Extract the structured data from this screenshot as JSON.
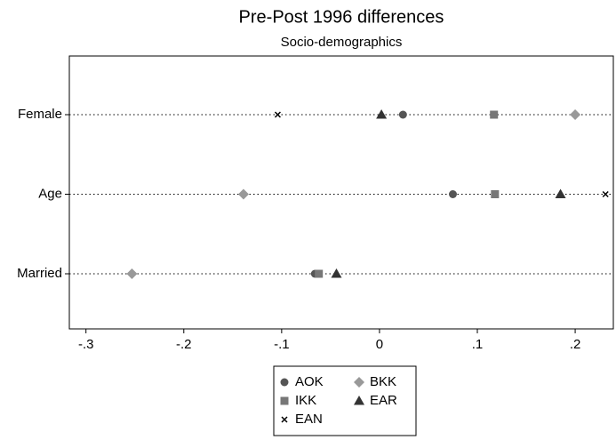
{
  "chart_data": {
    "type": "dot",
    "title": "Pre-Post 1996 differences",
    "subtitle": "Socio-demographics",
    "categories": [
      "Female",
      "Age",
      "Married"
    ],
    "series": [
      {
        "name": "AOK",
        "color": "#555555",
        "marker": "circle",
        "values": [
          0.024,
          0.075,
          -0.066
        ]
      },
      {
        "name": "BKK",
        "color": "#999999",
        "marker": "diamond",
        "values": [
          0.2,
          -0.139,
          -0.253
        ]
      },
      {
        "name": "IKK",
        "color": "#777777",
        "marker": "square",
        "values": [
          0.117,
          0.118,
          -0.062
        ]
      },
      {
        "name": "EAR",
        "color": "#333333",
        "marker": "triangle",
        "values": [
          0.002,
          0.185,
          -0.044
        ]
      },
      {
        "name": "EAN",
        "color": "#000000",
        "marker": "x",
        "values": [
          -0.104,
          0.231,
          null
        ]
      }
    ],
    "xlim": [
      -0.317,
      0.239
    ],
    "xticks": [
      {
        "value": -0.3,
        "label": "-.3"
      },
      {
        "value": -0.2,
        "label": "-.2"
      },
      {
        "value": -0.1,
        "label": "-.1"
      },
      0,
      {
        "value": 0.1,
        "label": ".1"
      },
      {
        "value": 0.2,
        "label": ".2"
      }
    ]
  }
}
